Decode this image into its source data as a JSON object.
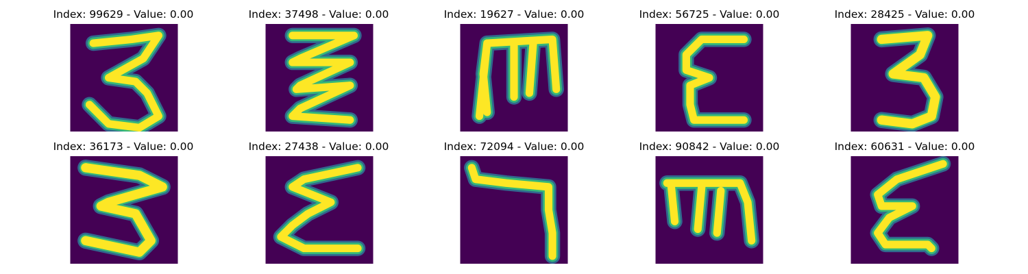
{
  "colors": {
    "background": "#440154",
    "stroke_core": "#fde725",
    "stroke_mid": "#35b779",
    "stroke_edge": "#21918c",
    "stroke_outer": "#31688e"
  },
  "panels": [
    {
      "index": "99629",
      "value": "0.00",
      "title": "Index: 99629 - Value: 0.00",
      "glyph": "3"
    },
    {
      "index": "37498",
      "value": "0.00",
      "title": "Index: 37498 - Value: 0.00",
      "glyph": "Ʒ-zigzag"
    },
    {
      "index": "19627",
      "value": "0.00",
      "title": "Index: 19627 - Value: 0.00",
      "glyph": "m-rotated-E"
    },
    {
      "index": "56725",
      "value": "0.00",
      "title": "Index: 56725 - Value: 0.00",
      "glyph": "E-curly"
    },
    {
      "index": "28425",
      "value": "0.00",
      "title": "Index: 28425 - Value: 0.00",
      "glyph": "3"
    },
    {
      "index": "36173",
      "value": "0.00",
      "title": "Index: 36173 - Value: 0.00",
      "glyph": "3-zigzag"
    },
    {
      "index": "27438",
      "value": "0.00",
      "title": "Index: 27438 - Value: 0.00",
      "glyph": "sigma"
    },
    {
      "index": "72094",
      "value": "0.00",
      "title": "Index: 72094 - Value: 0.00",
      "glyph": "7-hook"
    },
    {
      "index": "90842",
      "value": "0.00",
      "title": "Index: 90842 - Value: 0.00",
      "glyph": "m-rotated-E"
    },
    {
      "index": "60631",
      "value": "0.00",
      "title": "Index: 60631 - Value: 0.00",
      "glyph": "E-curly"
    }
  ]
}
